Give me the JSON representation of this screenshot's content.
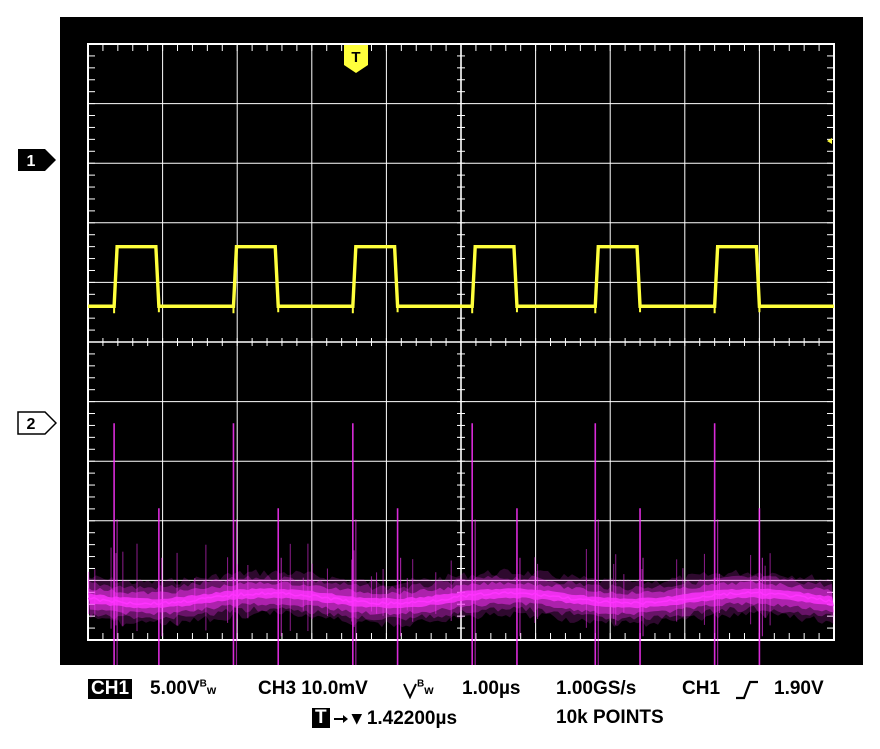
{
  "trigger_marker": "T",
  "channel_markers": [
    "1",
    "2"
  ],
  "readout": {
    "ch1_badge": "CH1",
    "ch1_scale": "5.00V",
    "ch1_bw": "B",
    "ch1_bw_sub": "w",
    "ch3": "CH3 10.0mV",
    "ch3_bw": "B",
    "ch3_bw_sub": "w",
    "timebase": "1.00µs",
    "sample_rate": "1.00GS/s",
    "trigger_source": "CH1",
    "trigger_level": "1.90V",
    "trigger_badge": "T",
    "trigger_delay": "▾ 1.42200µs",
    "points": "10k POINTS"
  },
  "colors": {
    "ch1": "#ffff3c",
    "ch2": "#ff33ff",
    "grid": "#ffffff",
    "background": "#000000"
  },
  "chart_data": {
    "type": "line",
    "x_unit": "µs",
    "x_range": [
      0,
      10
    ],
    "series": [
      {
        "channel": "1",
        "high_level": 1.6,
        "low_level": 0.6,
        "pulses": [
          [
            0.35,
            0.95
          ],
          [
            1.95,
            2.55
          ],
          [
            3.55,
            4.15
          ],
          [
            5.15,
            5.75
          ],
          [
            6.8,
            7.4
          ],
          [
            8.4,
            9.0
          ]
        ]
      },
      {
        "channel": "2",
        "baseline": -4.3,
        "band_half_height": 0.35,
        "spike_times": [
          0.35,
          0.95,
          1.95,
          2.55,
          3.55,
          4.15,
          5.15,
          5.75,
          6.8,
          7.4,
          8.4,
          9.0
        ]
      }
    ],
    "grid": true,
    "divisions": {
      "x": 10,
      "y": 10
    }
  }
}
